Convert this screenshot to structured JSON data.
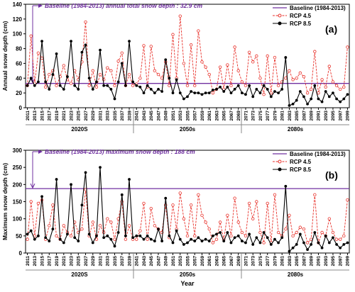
{
  "chart_data": [
    {
      "type": "line",
      "panel_label": "(a)",
      "annotation": "Baseline (1984-2013) annual total snow depth : 32.9 cm",
      "y_label": "Annual snow depth (cm)",
      "periods": [
        "2020S",
        "2050s",
        "2080s"
      ],
      "x": [
        2011,
        2012,
        2013,
        2014,
        2015,
        2016,
        2017,
        2018,
        2019,
        2020,
        2021,
        2022,
        2023,
        2024,
        2025,
        2026,
        2027,
        2028,
        2029,
        2030,
        2031,
        2032,
        2033,
        2034,
        2035,
        2036,
        2037,
        2038,
        2039,
        2040,
        2041,
        2042,
        2043,
        2044,
        2045,
        2046,
        2047,
        2048,
        2049,
        2050,
        2051,
        2052,
        2053,
        2054,
        2055,
        2056,
        2057,
        2058,
        2059,
        2060,
        2061,
        2062,
        2063,
        2064,
        2065,
        2066,
        2067,
        2068,
        2069,
        2070,
        2071,
        2072,
        2073,
        2074,
        2075,
        2076,
        2077,
        2078,
        2079,
        2080,
        2081,
        2082,
        2083,
        2084,
        2085,
        2086,
        2087,
        2088,
        2089,
        2090,
        2091,
        2092,
        2093,
        2094,
        2095,
        2096,
        2097,
        2098,
        2099
      ],
      "xlim": [
        2010.5,
        2099.5
      ],
      "xticks": [
        2011,
        2013,
        2015,
        2017,
        2019,
        2021,
        2023,
        2025,
        2027,
        2029,
        2031,
        2033,
        2035,
        2037,
        2039,
        2041,
        2043,
        2045,
        2047,
        2049,
        2051,
        2053,
        2055,
        2057,
        2059,
        2061,
        2063,
        2065,
        2067,
        2069,
        2071,
        2073,
        2075,
        2077,
        2079,
        2081,
        2083,
        2085,
        2087,
        2089,
        2091,
        2093,
        2095,
        2097,
        2099
      ],
      "ylim": [
        0,
        140
      ],
      "yticks": [
        0,
        20,
        40,
        60,
        80,
        100,
        120,
        140
      ],
      "baseline": {
        "name": "Baseline (1984-2013)",
        "value": 32.9,
        "color": "#7030a0"
      },
      "series": [
        {
          "name": "RCP 4.5",
          "color": "#e8322b",
          "dashed": true,
          "marker": "open-circle",
          "values": [
            30,
            97,
            33,
            74,
            67,
            28,
            45,
            50,
            30,
            42,
            57,
            38,
            33,
            50,
            38,
            62,
            116,
            30,
            50,
            28,
            45,
            38,
            54,
            50,
            30,
            63,
            74,
            30,
            45,
            30,
            32,
            40,
            84,
            28,
            83,
            50,
            45,
            40,
            62,
            30,
            99,
            40,
            124,
            60,
            30,
            85,
            30,
            104,
            62,
            55,
            45,
            20,
            25,
            55,
            25,
            58,
            30,
            82,
            50,
            35,
            30,
            75,
            62,
            70,
            40,
            18,
            70,
            20,
            68,
            30,
            35,
            40,
            50,
            38,
            40,
            47,
            42,
            20,
            25,
            76,
            20,
            38,
            28,
            56,
            35,
            30,
            25,
            28,
            82
          ]
        },
        {
          "name": "RCP 8.5",
          "color": "#000000",
          "dashed": false,
          "marker": "dot",
          "values": [
            30,
            40,
            30,
            35,
            90,
            35,
            25,
            45,
            73,
            30,
            25,
            42,
            90,
            30,
            25,
            75,
            85,
            40,
            25,
            35,
            78,
            30,
            30,
            25,
            12,
            35,
            60,
            30,
            90,
            35,
            30,
            28,
            20,
            30,
            25,
            20,
            25,
            22,
            65,
            40,
            20,
            38,
            20,
            12,
            15,
            22,
            20,
            20,
            18,
            20,
            20,
            24,
            25,
            28,
            22,
            28,
            20,
            25,
            30,
            20,
            18,
            30,
            15,
            25,
            20,
            30,
            25,
            15,
            22,
            20,
            25,
            68,
            3,
            5,
            10,
            22,
            15,
            5,
            12,
            30,
            12,
            8,
            22,
            15,
            20,
            12,
            8,
            12,
            18
          ]
        }
      ]
    },
    {
      "type": "line",
      "panel_label": "(b)",
      "annotation": "Baseline (1984-2013) maximum snow depth : 188 cm",
      "y_label": "Maximum snow depth (cm)",
      "x_label": "Year",
      "periods": [
        "2020S",
        "2050s",
        "2080s"
      ],
      "x": [
        2011,
        2012,
        2013,
        2014,
        2015,
        2016,
        2017,
        2018,
        2019,
        2020,
        2021,
        2022,
        2023,
        2024,
        2025,
        2026,
        2027,
        2028,
        2029,
        2030,
        2031,
        2032,
        2033,
        2034,
        2035,
        2036,
        2037,
        2038,
        2039,
        2040,
        2041,
        2042,
        2043,
        2044,
        2045,
        2046,
        2047,
        2048,
        2049,
        2050,
        2051,
        2052,
        2053,
        2054,
        2055,
        2056,
        2057,
        2058,
        2059,
        2060,
        2061,
        2062,
        2063,
        2064,
        2065,
        2066,
        2067,
        2068,
        2069,
        2070,
        2071,
        2072,
        2073,
        2074,
        2075,
        2076,
        2077,
        2078,
        2079,
        2080,
        2081,
        2082,
        2083,
        2084,
        2085,
        2086,
        2087,
        2088,
        2089,
        2090,
        2091,
        2092,
        2093,
        2094,
        2095,
        2096,
        2097,
        2098,
        2099
      ],
      "xlim": [
        2010.5,
        2099.5
      ],
      "xticks": [
        2011,
        2013,
        2015,
        2017,
        2019,
        2021,
        2023,
        2025,
        2027,
        2029,
        2031,
        2033,
        2035,
        2037,
        2039,
        2041,
        2043,
        2045,
        2047,
        2049,
        2051,
        2053,
        2055,
        2057,
        2059,
        2061,
        2063,
        2065,
        2067,
        2069,
        2071,
        2073,
        2075,
        2077,
        2079,
        2081,
        2083,
        2085,
        2087,
        2089,
        2091,
        2093,
        2095,
        2097,
        2099
      ],
      "ylim": [
        0,
        300
      ],
      "yticks": [
        0,
        50,
        100,
        150,
        200,
        250,
        300
      ],
      "baseline": {
        "name": "Baseline (1984-2013)",
        "value": 188,
        "color": "#7030a0"
      },
      "series": [
        {
          "name": "RCP 4.5",
          "color": "#e8322b",
          "dashed": true,
          "marker": "open-circle",
          "values": [
            40,
            150,
            50,
            145,
            155,
            40,
            80,
            140,
            50,
            40,
            80,
            60,
            50,
            90,
            60,
            70,
            185,
            50,
            90,
            40,
            80,
            60,
            100,
            90,
            40,
            100,
            150,
            40,
            80,
            40,
            40,
            65,
            145,
            40,
            130,
            80,
            70,
            60,
            140,
            45,
            140,
            70,
            175,
            100,
            50,
            140,
            50,
            170,
            110,
            90,
            70,
            30,
            40,
            90,
            40,
            110,
            50,
            160,
            90,
            60,
            50,
            145,
            100,
            150,
            60,
            30,
            145,
            30,
            170,
            60,
            50,
            70,
            110,
            50,
            60,
            75,
            70,
            30,
            40,
            170,
            30,
            60,
            50,
            100,
            60,
            40,
            40,
            50,
            155
          ]
        },
        {
          "name": "RCP 8.5",
          "color": "#000000",
          "dashed": false,
          "marker": "dot",
          "values": [
            55,
            65,
            40,
            50,
            165,
            45,
            35,
            70,
            215,
            40,
            30,
            55,
            200,
            45,
            35,
            140,
            235,
            55,
            30,
            50,
            250,
            45,
            50,
            40,
            20,
            60,
            170,
            50,
            215,
            45,
            50,
            50,
            40,
            50,
            40,
            35,
            70,
            35,
            160,
            50,
            30,
            65,
            40,
            25,
            30,
            40,
            35,
            45,
            35,
            40,
            35,
            50,
            55,
            60,
            35,
            60,
            30,
            45,
            50,
            35,
            30,
            55,
            25,
            45,
            30,
            60,
            45,
            25,
            40,
            30,
            45,
            195,
            5,
            15,
            25,
            55,
            30,
            10,
            25,
            60,
            30,
            15,
            50,
            30,
            45,
            25,
            15,
            25,
            30
          ]
        }
      ]
    }
  ]
}
